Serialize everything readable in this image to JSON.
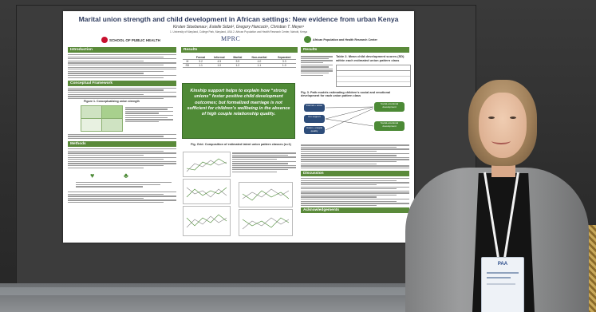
{
  "poster": {
    "title": "Marital union strength and child development in African settings: New evidence from urban Kenya",
    "authors": "Kirsten Stoebenau¹, Estelle Sidzé², Gregory Hancock¹, Christian T. Meyer¹",
    "affiliations": "1. University of Maryland, College Park, Maryland, USA   2. African Population and Health Research Center, Nairobi, Kenya",
    "logos": {
      "left": "SCHOOL OF PUBLIC HEALTH",
      "center": "MPRC",
      "right": "African Population and Health Research Center"
    },
    "sections": {
      "introduction": "Introduction",
      "conceptual_framework": "Conceptual Framework",
      "figure1": "Figure 1. Conceptualizing union strength",
      "methods": "Methods",
      "results": "Results",
      "results_right": "Results",
      "discussion": "Discussion",
      "acknowledgements": "Acknowledgements"
    },
    "callout": "Kinship support helps to explain how “strong unions” foster positive child development outcomes; but formalized marriage is not sufficient for children’s wellbeing in the absence of high couple relationship quality.",
    "fig_caption": "Fig. Grid. Composition of estimated latent union pattern classes (n=1)",
    "table2_title": "Table 2. Mean child development scores (SD) within each estimated union pattern class",
    "fig3_title": "Fig. 3. Path models estimating children's social and emotional development for each union pattern class",
    "result_table": {
      "headers": [
        "",
        "Formal",
        "Informal",
        "Marital",
        "Non-marital",
        "Separated"
      ],
      "row1": [
        "M",
        "3.2",
        "4.5",
        "3.9",
        "4.0",
        "3.3"
      ],
      "row2": [
        "SD",
        "1.1",
        "1.0",
        "1.2",
        "1.1",
        "1.0"
      ]
    },
    "paths": {
      "box1": "Formal + union",
      "box2": "Kin support",
      "box3": "Social-emotional development",
      "box4": "Union + couple quality"
    }
  },
  "colors": {
    "poster_accent": "#5a8a3a",
    "title_blue": "#2e3b5e",
    "callout_green": "#4f8a36"
  }
}
